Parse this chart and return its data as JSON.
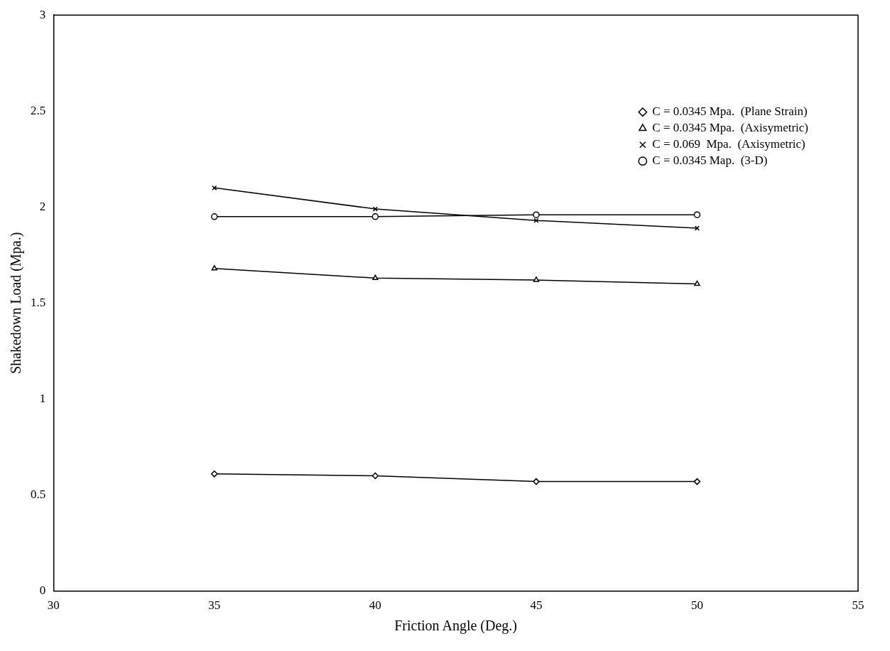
{
  "chart_data": {
    "type": "line",
    "xlabel": "Friction Angle (Deg.)",
    "ylabel": "Shakedown Load (Mpa.)",
    "x": [
      35,
      40,
      45,
      50
    ],
    "series": [
      {
        "name": "C = 0.0345 Mpa.  (Plane Strain)",
        "color": "#000000",
        "marker": "diamond",
        "values": [
          0.61,
          0.6,
          0.57,
          0.57
        ]
      },
      {
        "name": "C = 0.0345 Mpa.  (Axisymetric)",
        "color": "#000000",
        "marker": "triangle",
        "values": [
          1.68,
          1.63,
          1.62,
          1.6
        ]
      },
      {
        "name": "C = 0.069  Mpa.  (Axisymetric)",
        "color": "#000000",
        "marker": "cross",
        "values": [
          2.1,
          1.99,
          1.93,
          1.89
        ]
      },
      {
        "name": "C = 0.0345 Map.  (3-D)",
        "color": "#000000",
        "marker": "circle",
        "values": [
          1.95,
          1.95,
          1.96,
          1.96
        ]
      }
    ],
    "xlim": [
      30,
      55
    ],
    "xticks": [
      30,
      35,
      40,
      45,
      50,
      55
    ],
    "ylim": [
      0,
      3
    ],
    "yticks": [
      0,
      0.5,
      1,
      1.5,
      2,
      2.5,
      3
    ],
    "grid": false,
    "legend": "top right",
    "line_style": "solid"
  }
}
